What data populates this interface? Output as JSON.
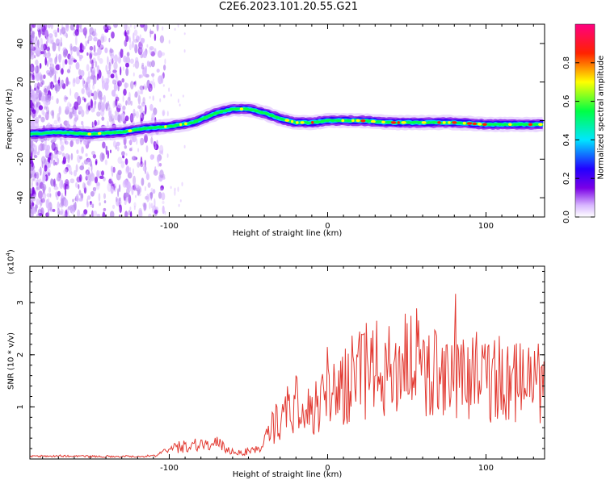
{
  "figure": {
    "title": "C2E6.2023.101.20.55.G21"
  },
  "chart_data": [
    {
      "type": "heatmap",
      "xlabel": "Height of straight line (km)",
      "ylabel": "Frequency (Hz)",
      "xlim": [
        -188,
        137
      ],
      "ylim": [
        -50,
        50
      ],
      "x_ticks": [
        -100,
        0,
        100
      ],
      "y_ticks": [
        -40,
        -20,
        0,
        20,
        40
      ],
      "colormap": [
        "#ffffff",
        "#d9b8ff",
        "#7a00e6",
        "#2200ff",
        "#00e6ff",
        "#00ff44",
        "#ffff00",
        "#ff2200",
        "#ff0080"
      ],
      "ridge": {
        "x": [
          -188,
          -170,
          -150,
          -130,
          -115,
          -100,
          -85,
          -70,
          -60,
          -50,
          -40,
          -30,
          -20,
          -10,
          0,
          20,
          40,
          60,
          80,
          100,
          120,
          137
        ],
        "frequency": [
          -7,
          -6,
          -7,
          -6,
          -4,
          -3,
          -1,
          4,
          6,
          6,
          4,
          1,
          -1,
          -1,
          0,
          0,
          -1,
          -1,
          -1,
          -2,
          -2,
          -2
        ]
      },
      "colorbar": {
        "label": "Normalized spectral amplitude",
        "ticks": [
          "0.0",
          "0.2",
          "0.4",
          "0.6",
          "0.8"
        ],
        "range": [
          0,
          1
        ]
      }
    },
    {
      "type": "line",
      "xlabel": "Height of straight line (km)",
      "ylabel": "SNR (10 * v/v)",
      "y_scale_note": "(x10^4)",
      "xlim": [
        -188,
        137
      ],
      "ylim": [
        0,
        3.7
      ],
      "x_ticks": [
        -100,
        0,
        100
      ],
      "y_ticks": [
        1,
        2,
        3
      ],
      "color": "#e23a32",
      "series": [
        {
          "x": [
            -188,
            -170,
            -150,
            -130,
            -115,
            -105,
            -100,
            -95,
            -90,
            -85,
            -80,
            -75,
            -70,
            -65,
            -60,
            -55,
            -50,
            -45,
            -40,
            -35,
            -30,
            -25,
            -20,
            -15,
            -10,
            -5,
            0,
            5,
            10,
            15,
            20,
            25,
            30,
            35,
            40,
            45,
            50,
            55,
            60,
            65,
            70,
            75,
            80,
            85,
            90,
            95,
            100,
            105,
            110,
            115,
            120,
            125,
            130,
            137
          ],
          "y": [
            0.05,
            0.06,
            0.05,
            0.05,
            0.05,
            0.1,
            0.18,
            0.22,
            0.25,
            0.28,
            0.3,
            0.25,
            0.3,
            0.2,
            0.15,
            0.12,
            0.15,
            0.18,
            0.3,
            0.6,
            0.8,
            0.95,
            1.1,
            0.85,
            1.0,
            1.1,
            1.1,
            1.25,
            1.35,
            1.45,
            1.6,
            1.7,
            1.75,
            1.6,
            1.7,
            1.8,
            2.0,
            1.9,
            1.85,
            1.6,
            1.7,
            1.9,
            1.6,
            1.55,
            1.5,
            1.7,
            1.45,
            1.55,
            1.6,
            1.4,
            1.45,
            1.6,
            1.5,
            1.45
          ]
        }
      ]
    }
  ]
}
